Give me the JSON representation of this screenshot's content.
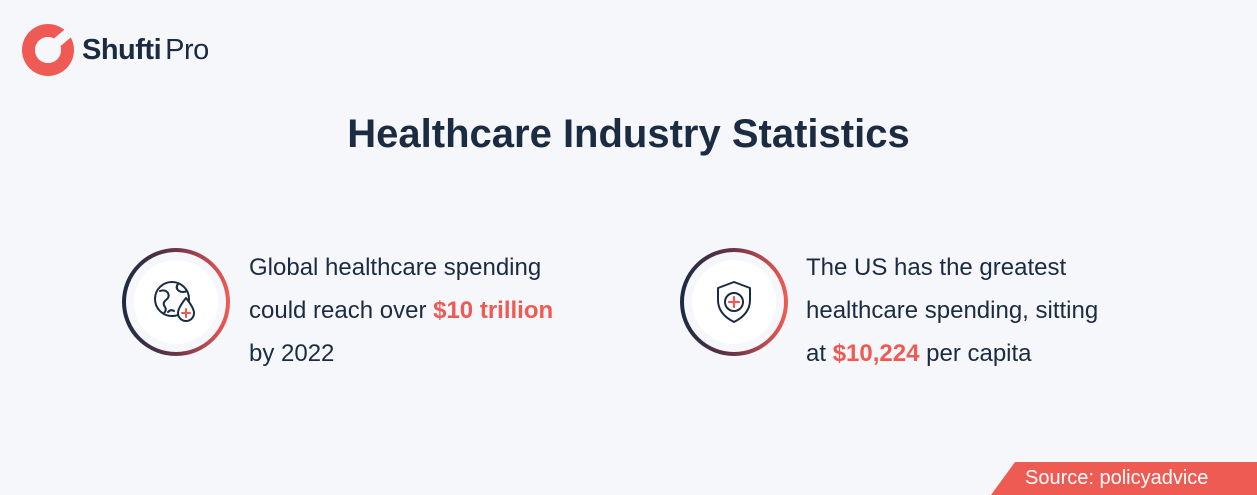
{
  "brand": {
    "name_bold": "Shufti",
    "name_light": "Pro",
    "logo_icon": "shufti-pro-logo-icon",
    "accent_color": "#ef5a54"
  },
  "title": "Healthcare Industry Statistics",
  "stats": [
    {
      "icon": "globe-blood-drop-icon",
      "line1": "Global healthcare spending",
      "line2_pre": "could reach over ",
      "line2_highlight": "$10 trillion",
      "line3": "by 2022"
    },
    {
      "icon": "shield-medical-cross-icon",
      "line1": "The US has the greatest",
      "line2": "healthcare spending, sitting",
      "line3_pre": "at ",
      "line3_highlight": "$10,224",
      "line3_post": " per capita"
    }
  ],
  "source": "Source: policyadvice",
  "colors": {
    "background": "#f6f7fb",
    "text": "#1b2b42",
    "accent": "#ef5a54"
  }
}
